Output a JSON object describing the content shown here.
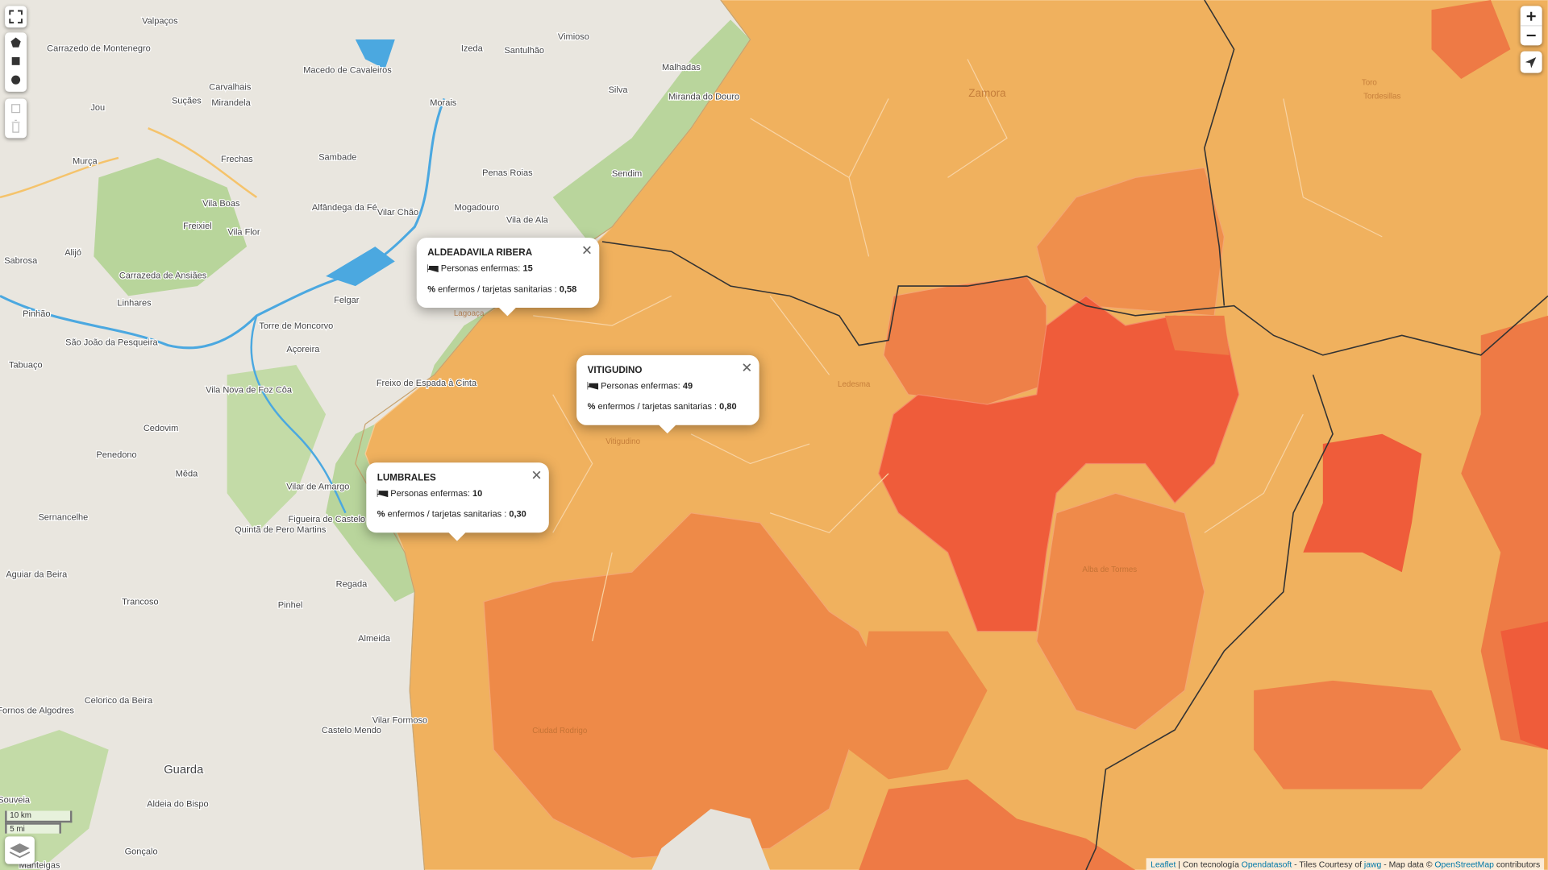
{
  "popups": [
    {
      "title": "ALDEADAVILA RIBERA",
      "cases_label": "Personas enfermas:",
      "cases": 15,
      "ratio_icon": "%",
      "ratio_label": "enfermos / tarjetas sanitarias :",
      "ratio": "0,58"
    },
    {
      "title": "VITIGUDINO",
      "cases_label": "Personas enfermas:",
      "cases": 49,
      "ratio_icon": "%",
      "ratio_label": "enfermos / tarjetas sanitarias :",
      "ratio": "0,80"
    },
    {
      "title": "LUMBRALES",
      "cases_label": "Personas enfermas:",
      "cases": 10,
      "ratio_icon": "%",
      "ratio_label": "enfermos / tarjetas sanitarias :",
      "ratio": "0,30"
    }
  ],
  "places": [
    "Valpaços",
    "Carrazedo de Montenegro",
    "Vimioso",
    "Izeda",
    "Santulhão",
    "Macedo de Cavaleiros",
    "Malhadas",
    "Miranda do Douro",
    "Mirandela",
    "Suçães",
    "Carvalhais",
    "Morais",
    "Silva",
    "Jou",
    "Murça",
    "Frechas",
    "Sambade",
    "Penas Roias",
    "Sendim",
    "Alfândega da Fé",
    "Vilar Chão",
    "Mogadouro",
    "Vila Boas",
    "Vila de Ala",
    "Vila Flor",
    "Freixiel",
    "Sabrosa",
    "Alijó",
    "Carrazeda de Ansiães",
    "Felgar",
    "Linhares",
    "Pinhão",
    "Torre de Moncorvo",
    "São João da Pesqueira",
    "Açoreira",
    "Tabuaço",
    "Freixo de Espada à Cinta",
    "Vila Nova de Foz Côa",
    "Cedovim",
    "Penedono",
    "Mêda",
    "Vilar de Amargo",
    "Figueira de Castelo Rodrigo",
    "Sernancelhe",
    "Quintã de Pero Martins",
    "Aguiar da Beira",
    "Regada",
    "Trancoso",
    "Pinhel",
    "Almeida",
    "Vilar Formoso",
    "Celorico da Beira",
    "Fornos de Algodres",
    "Castelo Mendo",
    "Guarda",
    "Aldeia do Bispo",
    "Gonçalo",
    "Manteigas",
    "Souveia",
    "Lagoaça",
    "Ledesma",
    "Vitigudino",
    "Alba de Tormes",
    "Zamora",
    "Toro",
    "Tordesillas",
    "Ciudad Rodrigo"
  ],
  "scale": {
    "metric": "10 km",
    "imperial": "5 mi"
  },
  "attribution": {
    "leaflet": "Leaflet",
    "sep": " | Con tecnología ",
    "ods": "Opendatasoft",
    "tiles": " - Tiles Courtesy of ",
    "jawg": "jawg",
    "data": " - Map data © ",
    "osm": "OpenStreetMap",
    "end": " contributors"
  }
}
